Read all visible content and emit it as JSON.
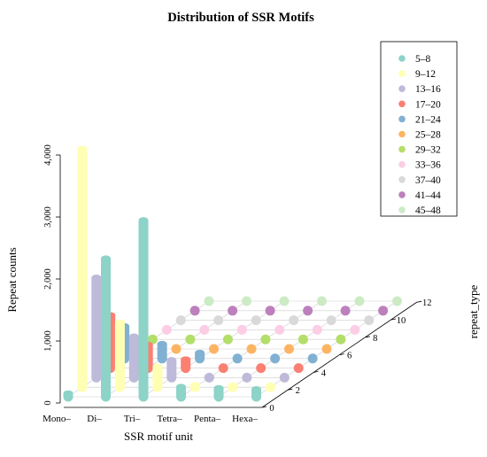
{
  "chart_data": {
    "type": "bar",
    "subtype": "3d-cylinder-scatter",
    "title": "Distribution of SSR Motifs",
    "xlabel": "SSR motif unit",
    "ylabel": "Repeat counts",
    "zlabel": "repeat_type",
    "categories": [
      "Mono",
      "Di",
      "Tri",
      "Tetra",
      "Penta",
      "Hexa"
    ],
    "category_labels": [
      "Mono–",
      "Di–",
      "Tri–",
      "Tetra–",
      "Penta–",
      "Hexa–"
    ],
    "ylim": [
      0,
      4000
    ],
    "y_ticks": [
      "0",
      "1,000",
      "2,000",
      "3,000",
      "4,000"
    ],
    "z_ticks": [
      "0",
      "2",
      "4",
      "6",
      "8",
      "10",
      "12"
    ],
    "legend_position": "top-right",
    "series": [
      {
        "name": "5–8",
        "color": "#8dd3c7",
        "values": [
          60,
          2350,
          3000,
          170,
          150,
          130
        ]
      },
      {
        "name": "9–12",
        "color": "#ffffb3",
        "values": [
          4050,
          1100,
          350,
          40,
          30,
          20
        ]
      },
      {
        "name": "13–16",
        "color": "#bebada",
        "values": [
          1700,
          700,
          300,
          20,
          15,
          10
        ]
      },
      {
        "name": "17–20",
        "color": "#fb8072",
        "values": [
          900,
          400,
          150,
          10,
          10,
          5
        ]
      },
      {
        "name": "21–24",
        "color": "#80b1d3",
        "values": [
          550,
          250,
          100,
          5,
          5,
          5
        ]
      },
      {
        "name": "25–28",
        "color": "#fdb462",
        "values": [
          5,
          5,
          5,
          5,
          5,
          5
        ]
      },
      {
        "name": "29–32",
        "color": "#b3de69",
        "values": [
          5,
          5,
          5,
          5,
          5,
          5
        ]
      },
      {
        "name": "33–36",
        "color": "#fccde5",
        "values": [
          5,
          5,
          5,
          5,
          5,
          5
        ]
      },
      {
        "name": "37–40",
        "color": "#d9d9d9",
        "values": [
          5,
          5,
          5,
          5,
          5,
          5
        ]
      },
      {
        "name": "41–44",
        "color": "#bc80bd",
        "values": [
          5,
          5,
          5,
          5,
          5,
          5
        ]
      },
      {
        "name": "45–48",
        "color": "#ccebc5",
        "values": [
          5,
          5,
          5,
          5,
          5,
          5
        ]
      }
    ]
  }
}
